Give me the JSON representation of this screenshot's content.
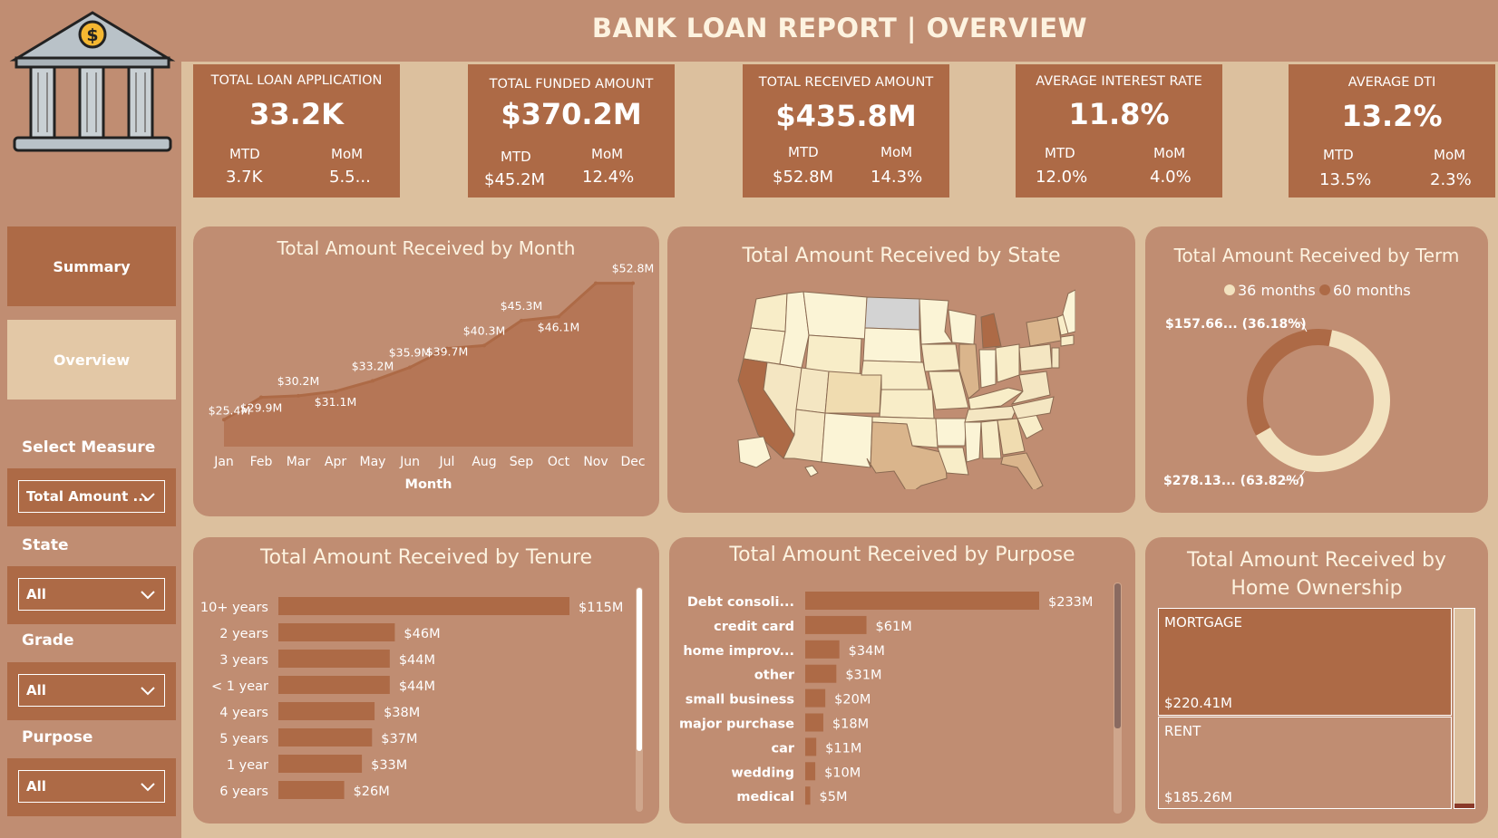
{
  "title": "BANK LOAN REPORT | OVERVIEW",
  "icons": {
    "logo": "bank-icon",
    "dollar": "$"
  },
  "nav": {
    "summary": "Summary",
    "overview": "Overview"
  },
  "filters": {
    "measure_label": "Select Measure",
    "measure_value": "Total Amount ...",
    "state_label": "State",
    "state_value": "All",
    "grade_label": "Grade",
    "grade_value": "All",
    "purpose_label": "Purpose",
    "purpose_value": "All"
  },
  "kpis": [
    {
      "title": "TOTAL LOAN APPLICATION",
      "value": "33.2K",
      "mtd_label": "MTD",
      "mtd": "3.7K",
      "mom_label": "MoM",
      "mom": "5.5..."
    },
    {
      "title": "TOTAL FUNDED AMOUNT",
      "value": "$370.2M",
      "mtd_label": "MTD",
      "mtd": "$45.2M",
      "mom_label": "MoM",
      "mom": "12.4%"
    },
    {
      "title": "TOTAL RECEIVED AMOUNT",
      "value": "$435.8M",
      "mtd_label": "MTD",
      "mtd": "$52.8M",
      "mom_label": "MoM",
      "mom": "14.3%"
    },
    {
      "title": "AVERAGE INTEREST RATE",
      "value": "11.8%",
      "mtd_label": "MTD",
      "mtd": "12.0%",
      "mom_label": "MoM",
      "mom": "4.0%"
    },
    {
      "title": "AVERAGE DTI",
      "value": "13.2%",
      "mtd_label": "MTD",
      "mtd": "13.5%",
      "mom_label": "MoM",
      "mom": "2.3%"
    }
  ],
  "cards": {
    "month": "Total Amount Received by Month",
    "state": "Total Amount Received by State",
    "term": "Total Amount Received by Term",
    "tenure": "Total Amount Received by Tenure",
    "purpose": "Total Amount Received by Purpose",
    "home_line1": "Total Amount Received by",
    "home_line2": "Home Ownership"
  },
  "colors": {
    "accent": "#ad6a46",
    "panel": "#c08d72",
    "background": "#dcc09e",
    "cream": "#f2e2bf"
  },
  "chart_data": [
    {
      "type": "area",
      "title": "Total Amount Received by Month",
      "xlabel": "Month",
      "categories": [
        "Jan",
        "Feb",
        "Mar",
        "Apr",
        "May",
        "Jun",
        "Jul",
        "Aug",
        "Sep",
        "Oct",
        "Nov",
        "Dec"
      ],
      "values": [
        25.4,
        29.9,
        30.2,
        31.1,
        33.2,
        35.9,
        39.7,
        40.3,
        45.3,
        46.1,
        52.8,
        52.8
      ],
      "data_labels": [
        "$25.4M",
        "$29.9M",
        "$30.2M",
        "$31.1M",
        "$33.2M",
        "$35.9M",
        "$39.7M",
        "$40.3M",
        "$45.3M",
        "$46.1M",
        "$52.8M",
        "$52.8M"
      ]
    },
    {
      "type": "pie",
      "title": "Total Amount Received by Term",
      "legend": [
        "36 months",
        "60 months"
      ],
      "legend_position": "top",
      "values": [
        278.13,
        157.66
      ],
      "labels": [
        "$278.13... (63.82%)",
        "$157.66... (36.18%)"
      ],
      "colors": [
        "#f2e2bf",
        "#ad6a46"
      ]
    },
    {
      "type": "bar",
      "title": "Total Amount Received by Tenure",
      "categories": [
        "10+ years",
        "2 years",
        "3 years",
        "< 1 year",
        "4 years",
        "5 years",
        "1 year",
        "6 years"
      ],
      "values": [
        115,
        46,
        44,
        44,
        38,
        37,
        33,
        26
      ],
      "data_labels": [
        "$115M",
        "$46M",
        "$44M",
        "$44M",
        "$38M",
        "$37M",
        "$33M",
        "$26M"
      ]
    },
    {
      "type": "bar",
      "title": "Total Amount Received by Purpose",
      "categories": [
        "Debt consoli...",
        "credit card",
        "home improv...",
        "other",
        "small business",
        "major purchase",
        "car",
        "wedding",
        "medical"
      ],
      "values": [
        233,
        61,
        34,
        31,
        20,
        18,
        11,
        10,
        5
      ],
      "data_labels": [
        "$233M",
        "$61M",
        "$34M",
        "$31M",
        "$20M",
        "$18M",
        "$11M",
        "$10M",
        "$5M"
      ]
    },
    {
      "type": "table",
      "title": "Total Amount Received by Home Ownership",
      "categories": [
        "MORTGAGE",
        "RENT"
      ],
      "values": [
        220.41,
        185.26
      ],
      "data_labels": [
        "$220.41M",
        "$185.26M"
      ]
    }
  ]
}
